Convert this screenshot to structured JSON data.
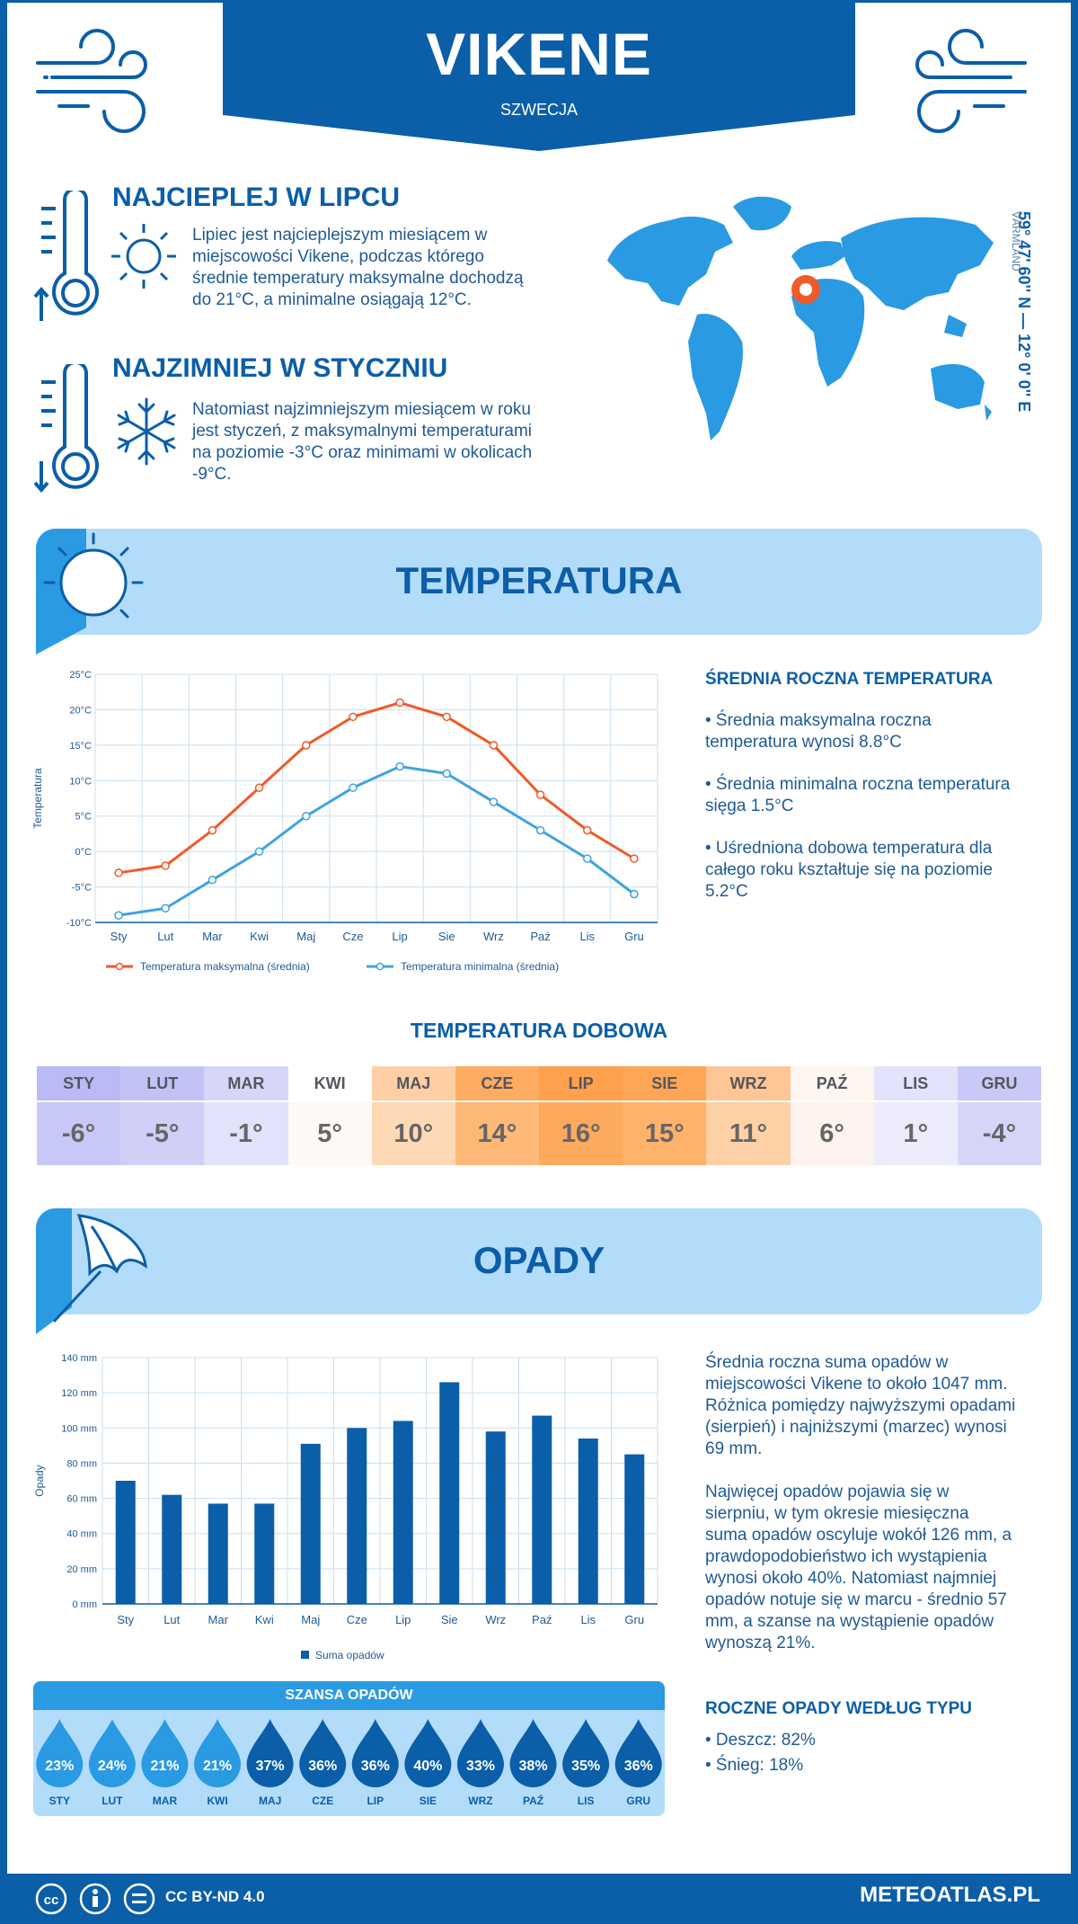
{
  "header": {
    "title": "VIKENE",
    "subtitle": "SZWECJA"
  },
  "warmest": {
    "heading": "NAJCIEPLEJ W LIPCU",
    "lines": [
      "Lipiec jest najcieplejszym miesiącem w",
      "miejscowości Vikene, podczas którego",
      "średnie temperatury maksymalne dochodzą",
      "do 21°C, a minimalne osiągają 12°C."
    ]
  },
  "coldest": {
    "heading": "NAJZIMNIEJ W STYCZNIU",
    "lines": [
      "Natomiast najzimniejszym miesiącem w roku",
      "jest styczeń, z maksymalnymi temperaturami",
      "na poziomie -3°C oraz minimami w okolicach",
      "-9°C."
    ]
  },
  "location": {
    "coords": "59° 47' 60'' N — 12° 0' 0'' E",
    "region": "VÄRMLAND"
  },
  "temperature": {
    "section_title": "TEMPERATURA",
    "side_heading": "ŚREDNIA ROCZNA TEMPERATURA",
    "bullets": [
      [
        "• Średnia maksymalna roczna",
        "temperatura wynosi 8.8°C"
      ],
      [
        "• Średnia minimalna roczna temperatura",
        "sięga 1.5°C"
      ],
      [
        "• Uśredniona dobowa temperatura dla",
        "całego roku kształtuje się na poziomie",
        "5.2°C"
      ]
    ],
    "daily_title": "TEMPERATURA DOBOWA",
    "daily": [
      {
        "month": "STY",
        "value": "-6°",
        "bg": "#c8c8f8",
        "top": "#babaf4"
      },
      {
        "month": "LUT",
        "value": "-5°",
        "bg": "#cfcff8",
        "top": "#c2c2f5"
      },
      {
        "month": "MAR",
        "value": "-1°",
        "bg": "#e2e2fb",
        "top": "#d6d6f9"
      },
      {
        "month": "KWI",
        "value": "5°",
        "bg": "#fdf9f6",
        "top": "#ffffff"
      },
      {
        "month": "MAJ",
        "value": "10°",
        "bg": "#fed9b6",
        "top": "#fecfa5"
      },
      {
        "month": "CZE",
        "value": "14°",
        "bg": "#feb877",
        "top": "#feac62"
      },
      {
        "month": "LIP",
        "value": "16°",
        "bg": "#feaa5d",
        "top": "#fea04c"
      },
      {
        "month": "SIE",
        "value": "15°",
        "bg": "#feb26b",
        "top": "#fea656"
      },
      {
        "month": "WRZ",
        "value": "11°",
        "bg": "#fed0a6",
        "top": "#fec694"
      },
      {
        "month": "PAŹ",
        "value": "6°",
        "bg": "#fef3ec",
        "top": "#fff6f0"
      },
      {
        "month": "LIS",
        "value": "1°",
        "bg": "#ebebfc",
        "top": "#e3e3fb"
      },
      {
        "month": "GRU",
        "value": "-4°",
        "bg": "#d5d5f9",
        "top": "#c9c9f7"
      }
    ]
  },
  "precip": {
    "section_title": "OPADY",
    "text1": [
      "Średnia roczna suma opadów w",
      "miejscowości Vikene to około 1047 mm.",
      "Różnica pomiędzy najwyższymi opadami",
      "(sierpień) i najniższymi (marzec) wynosi",
      "69 mm."
    ],
    "text2": [
      "Najwięcej opadów pojawia się w",
      "sierpniu, w tym okresie miesięczna",
      "suma opadów oscyluje wokół 126 mm, a",
      "prawdopodobieństwo ich wystąpienia",
      "wynosi około 40%. Natomiast najmniej",
      "opadów notuje się w marcu - średnio 57",
      "mm, a szanse na wystąpienie opadów",
      "wynoszą 21%."
    ],
    "type_heading": "ROCZNE OPADY WEDŁUG TYPU",
    "types": [
      "• Deszcz: 82%",
      "• Śnieg: 18%"
    ],
    "chance_title": "SZANSA OPADÓW",
    "chance": [
      {
        "month": "STY",
        "value": "23%"
      },
      {
        "month": "LUT",
        "value": "24%"
      },
      {
        "month": "MAR",
        "value": "21%"
      },
      {
        "month": "KWI",
        "value": "21%"
      },
      {
        "month": "MAJ",
        "value": "37%"
      },
      {
        "month": "CZE",
        "value": "36%"
      },
      {
        "month": "LIP",
        "value": "36%"
      },
      {
        "month": "SIE",
        "value": "40%"
      },
      {
        "month": "WRZ",
        "value": "33%"
      },
      {
        "month": "PAŹ",
        "value": "38%"
      },
      {
        "month": "LIS",
        "value": "35%"
      },
      {
        "month": "GRU",
        "value": "36%"
      }
    ]
  },
  "footer": {
    "license": "CC BY-ND 4.0",
    "site": "METEOATLAS.PL"
  },
  "chart_data": [
    {
      "type": "line",
      "categories": [
        "Sty",
        "Lut",
        "Mar",
        "Kwi",
        "Maj",
        "Cze",
        "Lip",
        "Sie",
        "Wrz",
        "Paź",
        "Lis",
        "Gru"
      ],
      "ylabel": "Temperatura",
      "ylim": [
        -10,
        25
      ],
      "yticks": [
        "-10°C",
        "-5°C",
        "0°C",
        "5°C",
        "10°C",
        "15°C",
        "20°C",
        "25°C"
      ],
      "grid": true,
      "legend": "bottom",
      "series": [
        {
          "name": "Temperatura maksymalna (średnia)",
          "color": "#f05a28",
          "values": [
            -3,
            -2,
            3,
            9,
            15,
            19,
            21,
            19,
            15,
            8,
            3,
            -1
          ]
        },
        {
          "name": "Temperatura minimalna (średnia)",
          "color": "#3fa2e0",
          "values": [
            -9,
            -8,
            -4,
            0,
            5,
            9,
            12,
            11,
            7,
            3,
            -1,
            -6
          ]
        }
      ]
    },
    {
      "type": "bar",
      "categories": [
        "Sty",
        "Lut",
        "Mar",
        "Kwi",
        "Maj",
        "Cze",
        "Lip",
        "Sie",
        "Wrz",
        "Paź",
        "Lis",
        "Gru"
      ],
      "ylabel": "Opady",
      "ylim": [
        0,
        140
      ],
      "yticks": [
        "0 mm",
        "20 mm",
        "40 mm",
        "60 mm",
        "80 mm",
        "100 mm",
        "120 mm",
        "140 mm"
      ],
      "grid": true,
      "legend": "bottom",
      "series": [
        {
          "name": "Suma opadów",
          "color": "#0b5ea8",
          "values": [
            70,
            62,
            57,
            57,
            91,
            100,
            104,
            126,
            98,
            107,
            94,
            85
          ]
        }
      ]
    }
  ]
}
